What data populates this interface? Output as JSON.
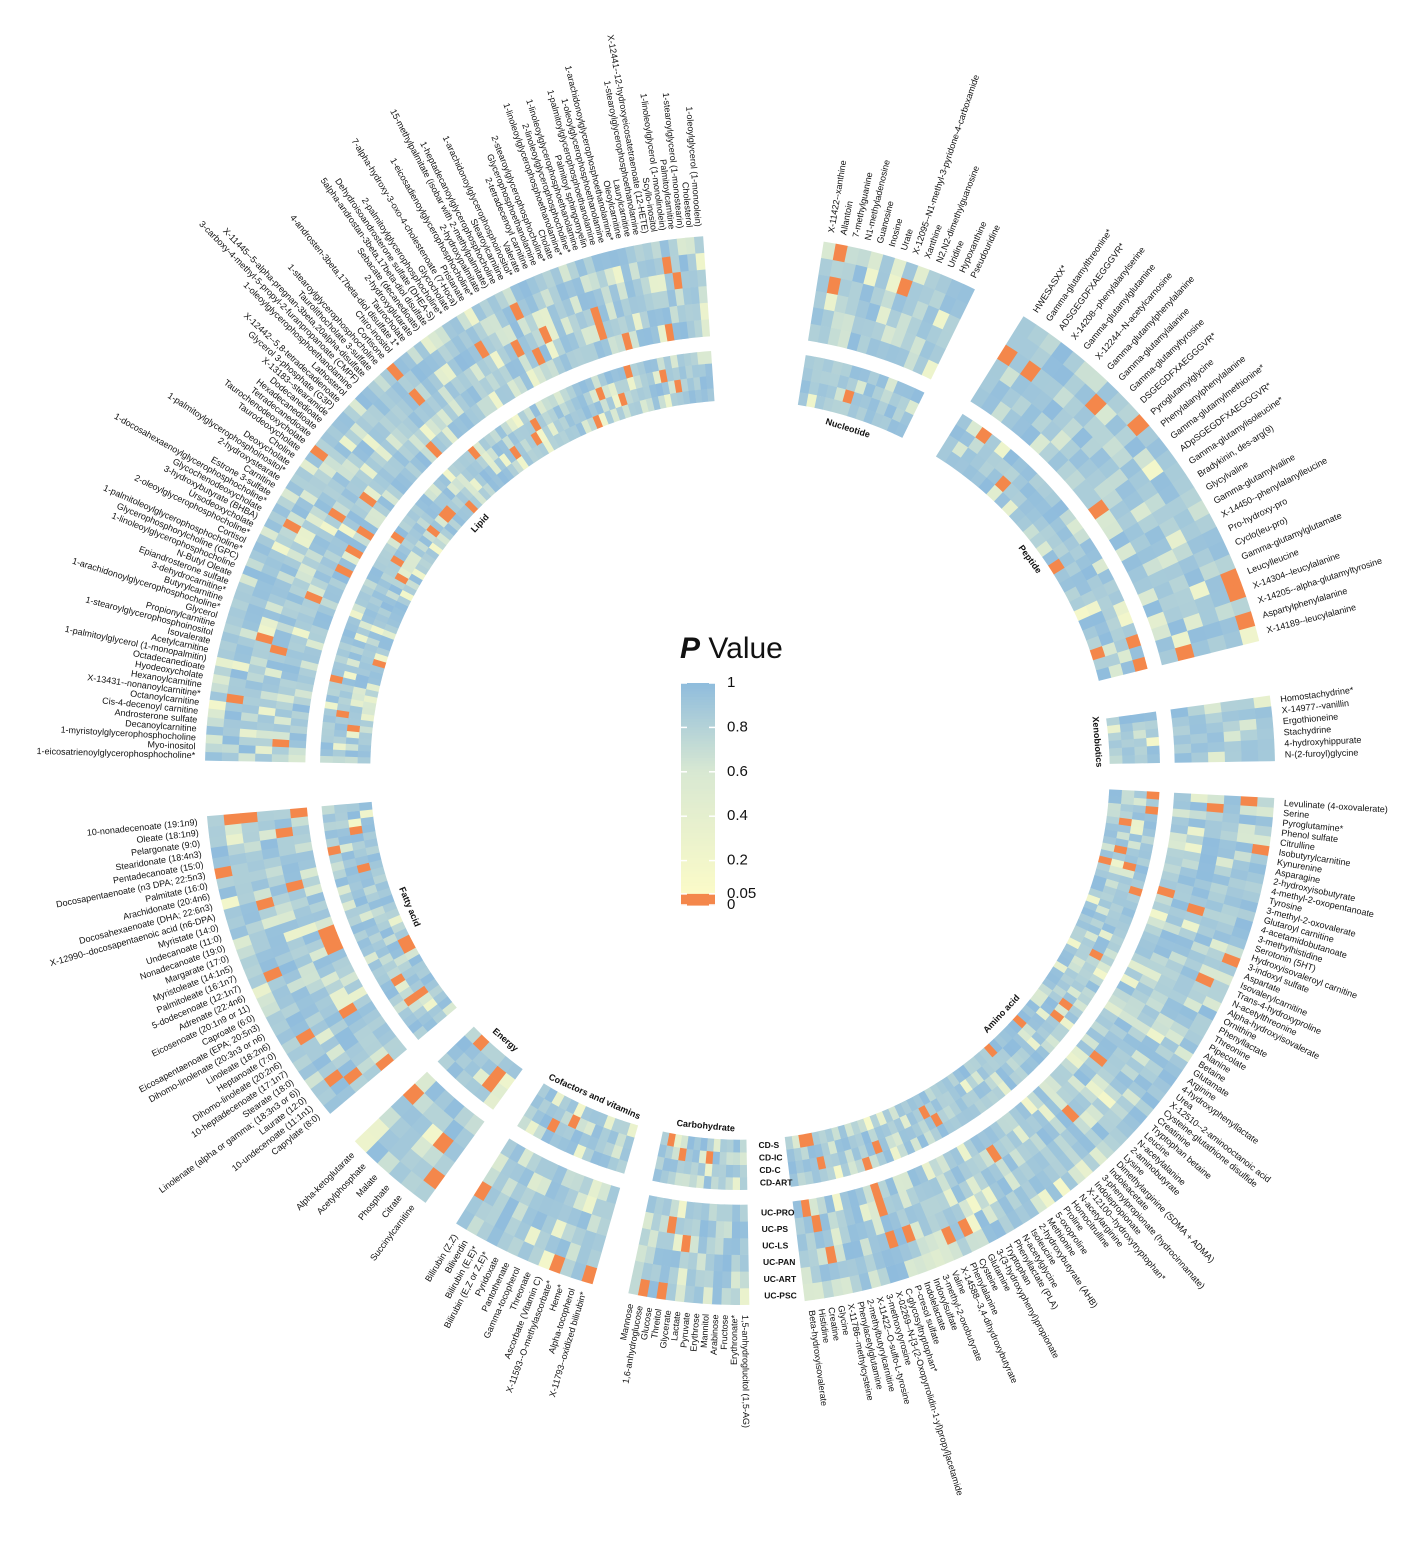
{
  "chart_data": {
    "type": "heatmap",
    "layout": "circular",
    "title": "",
    "legend": {
      "title_p": "P",
      "title_rest": " Value",
      "ticks": [
        "1",
        "0.8",
        "0.6",
        "0.4",
        "0.2",
        "0.05",
        "0"
      ],
      "tick_values": [
        1,
        0.8,
        0.6,
        0.4,
        0.2,
        0.05,
        0
      ],
      "colors": {
        "high": "#8fbcdd",
        "mid": "#d8e8d2",
        "low": "#fbfbc8",
        "sig": "#f4874b"
      },
      "threshold": 0.05
    },
    "rows_inner": [
      "CD-ART",
      "CD-C",
      "CD-IC",
      "CD-S"
    ],
    "rows_outer": [
      "UC-PSC",
      "UC-ART",
      "UC-PAN",
      "UC-LS",
      "UC-PS",
      "UC-PRO"
    ],
    "classes": [
      {
        "name": "Amino acid",
        "start_deg": 93,
        "end_deg": 173,
        "metabolites": [
          "Levulinate (4-oxovalerate)",
          "Serine",
          "Pyroglutamine*",
          "Phenol sulfate",
          "Citrulline",
          "Isobutyrylcarnitine",
          "Kynurenine",
          "Asparagine",
          "2-hydroxyisobutyrate",
          "4-methyl-2-oxopentanoate",
          "Tyrosine",
          "3-methyl-2-oxovalerate",
          "Glutaroyl carnitine",
          "4-acetamidobutanoate",
          "3-methylhistidine",
          "Serotonin (5HT)",
          "Hydroxyisovaleroyl carnitine",
          "3-indoxyl sulfate",
          "Aspartate",
          "Isovalerylcarnitine",
          "Trans-4-hydroxyproline",
          "N-acetylthreonine",
          "Alpha-hydroxyisovalerate",
          "Ornithine",
          "Phenyllactate",
          "Threonine",
          "Pipecolate",
          "Alanine",
          "Betaine",
          "Glutamate",
          "Arginine",
          "4-hydroxyphenyllactate",
          "Urea",
          "X-12510--2-aminooctanoic acid",
          "Cysteine-glutathione disulfide",
          "Creatinine",
          "Tryptophan betaine",
          "Leucine",
          "N-acetylalanine",
          "2-aminobutyrate",
          "Lysine",
          "Dimethylarginine (SDMA + ADMA)",
          "Indoleacetate",
          "3-phenylpropionate (hydrocinnamate)",
          "Indolepropionate",
          "X-12100--hydroxytryptophan*",
          "N-acetylarginine",
          "Homocitrulline",
          "Proline",
          "5-oxoproline",
          "Methionine",
          "2-hydroxybutyrate (AHB)",
          "Isoleucine",
          "N-acetylglycine",
          "Phenyllactate (PLA)",
          "Tryptophan",
          "3-(3-hydroxyphenyl)propionate",
          "Glutamine",
          "Cysteine",
          "Phenylalanine",
          "X-14588--3,4-dihydroxybutyrate",
          "Valine",
          "3-methyl-2-oxobutyrate",
          "Indoxylsulfate",
          "Indolelactate",
          "P-cresol sulfate",
          "C-glycosyltryptophan*",
          "X-02269--N-[3-(2-Oxopyrrolidin-1-yl)propyl]acetamide",
          "3-methoxytyrosine",
          "X-11422--O-sulfo-L-tyrosine",
          "2-methylbutyrylcarnitine",
          "Phenylacetylglutamine",
          "X-11786--methylcysteine",
          "Glycine",
          "Creatine",
          "Histidine",
          "Beta-hydroxyisovalerate"
        ]
      },
      {
        "name": "Carbohydrate",
        "start_deg": 179,
        "end_deg": 192,
        "metabolites": [
          "1,5-anhydroglucitol (1,5-AG)",
          "Erythronate*",
          "Fructose",
          "Arabinose",
          "Mannitol",
          "Erythrose",
          "Pyruvate",
          "Lactate",
          "Glycerate",
          "Threitol",
          "Glucose",
          "1,6-anhydroglucose",
          "Mannose"
        ]
      },
      {
        "name": "Cofactors and vitamins",
        "start_deg": 196,
        "end_deg": 212,
        "metabolites": [
          "X-11793--oxidized bilirubin*",
          "Alpha-tocopherol",
          "Heme*",
          "X-11593--O-methylascorbate*",
          "Ascorbate (Vitamin C)",
          "Threonate",
          "Gamma-tocopherol",
          "Pantothenate",
          "Pyridoxate",
          "Bilirubin (E,Z or Z,E)*",
          "Bilirubin (E,E)*",
          "Biliverdin",
          "Bilirubin (Z,Z)"
        ]
      },
      {
        "name": "Energy",
        "start_deg": 216,
        "end_deg": 226,
        "metabolites": [
          "Succinylcarnitine",
          "Citrate",
          "Phosphate",
          "Malate",
          "Acetylphosphate",
          "Alpha-ketoglutarate"
        ]
      },
      {
        "name": "Fatty acid",
        "start_deg": 230,
        "end_deg": 265,
        "metabolites": [
          "Caprylate (8:0)",
          "10-undecenoate (11:1n1)",
          "Laurate (12:0)",
          "Linolenate (alpha or gamma; (18:3n3 or 6))",
          "Stearate (18:0)",
          "10-heptadecenoate (17:1n7)",
          "Dihomo-linoleate (20:2n6)",
          "Heptanoate (7:0)",
          "Linoleate (18:2n6)",
          "Dihomo-linolenate (20:3n3 or n6)",
          "Eicosapentaenoate (EPA; 20:5n3)",
          "Caproate (6:0)",
          "Eicosenoate (20:1n9 or 11)",
          "Adrenate (22:4n6)",
          "5-dodecenoate (12:1n7)",
          "Palmitoleate (16:1n7)",
          "Myristoleate (14:1n5)",
          "Margarate (17:0)",
          "Nonadecanoate (19:0)",
          "Undecanoate (11:0)",
          "Myristate (14:0)",
          "X-12990--docosapentaenoic acid (n6-DPA)",
          "Docosahexaenoate (DHA; 22:6n3)",
          "Arachidonate (20:4n6)",
          "Palmitate (16:0)",
          "Docosapentaenoate (n3 DPA; 22:5n3)",
          "Pentadecanoate (15:0)",
          "Stearidonate (18:4n3)",
          "Pelargonate (9:0)",
          "Oleate (18:1n9)",
          "10-nonadecenoate (19:1n9)"
        ]
      },
      {
        "name": "Lipid",
        "start_deg": 271,
        "end_deg": 356,
        "metabolites": [
          "1-eicosatrienoylglycerophosphocholine*",
          "Myo-inositol",
          "1-myristoylglycerophosphocholine",
          "Decanoylcarnitine",
          "Androsterone sulfate",
          "Cis-4-decenoyl carnitine",
          "Octanoylcarnitine",
          "X-13431--nonanoylcarnitine*",
          "Hexanoylcarnitine",
          "Hyodeoxycholate",
          "Octadecanedioate",
          "1-palmitoylglycerol (1-monopalmitin)",
          "Acetylcarnitine",
          "Isovalerate",
          "1-stearoylglycerophosphoinositol",
          "Propionylcarnitine",
          "Glycerol",
          "1-arachidonoylglycerophosphocholine*",
          "Butyrylcarnitine",
          "3-dehydrocarnitine*",
          "Epiandrosterone sulfate",
          "N-Butyl Oleate",
          "1-linoleoylglycerophosphocholine",
          "Glycerophosphorylcholine (GPC)",
          "1-palmitoleoylglycerophosphocholine*",
          "Cortisol",
          "2-oleoylglycerophosphocholine*",
          "Ursodeoxycholate",
          "3-hydroxybutyrate (BHBA)",
          "Glycochenodeoxycholate",
          "1-docosahexaenoylglycerophosphocholine*",
          "Estrone 3-sulfate",
          "Carnitine",
          "2-hydroxystearate",
          "1-palmitoylglycerophosphoinositol*",
          "Deoxycholate",
          "Choline",
          "Taurodeoxycholate",
          "Taurochenodeoxycholate",
          "Tetradecanedioate",
          "Hexadecanedioate",
          "Dodecanedioate",
          "X-13183--stearamide",
          "Glycerol 3-phosphate (G3P)",
          "X-12442--5,8-tetradecadienoate",
          "Lathosterol",
          "1-oleoylglycerophosphoethanolamine",
          "3-carboxy-4-methyl-5-propyl-2-furanpropanoate (CMPF)",
          "X-11445--5-alpha-pregnan-3beta,20alpha-disulfate",
          "Taurolithocholate 3-sulfate",
          "1-stearoylglycerophosphocholine",
          "Cortisone",
          "Chiro-inositol",
          "4-androsten-3beta,17beta-diol disulfate 1*",
          "Taurocholate",
          "2-hydroxyglutarate",
          "Sebacate (decanedioate)",
          "5alpha-androstan-3beta,17beta-diol disulfate",
          "Dehydroisoandrosterone sulfate (DHEA-S)",
          "2-palmitoylglycerophosphocholine*",
          "Glycocholate",
          "7-alpha-hydroxy-3-oxo-4-cholestenoate (7-Hoca)",
          "Pristanate",
          "1-eicosadienoylglycerophosphocholine*",
          "2-hydroxypalmitate",
          "15-methylpalmitate (isobar with 2-methylpalmitate)",
          "1-heptadecanoylglycerophosphocholine",
          "Stearoylcarnitine",
          "1-arachidonoylglycerophosphoinositol*",
          "Valerate",
          "2-tetradecenoyl carnitine",
          "Glycerophosphoethanolamine",
          "2-stearoylglycerophosphocholine*",
          "Cholate",
          "1-linoleoylglycerophosphoethanolamine*",
          "2-linoleoylglycerophosphocholine*",
          "1-linoleoylglycerophosphoethanolamine",
          "Palmitoyl sphingomyelin",
          "1-palmitoylglycerophosphoethanolamine",
          "1-oleoylglycerophosphoethanolamine",
          "1-arachidonoylglycerophosphoethanolamine*",
          "Oleoylcarnitine",
          "Laurylcarnitine",
          "1-stearoylglycerophosphoethanolamine",
          "X-12441--12-hydroxyeicosatetraenoate (12-HETE)",
          "Scyllo-inositol",
          "1-linoleoylglycerol (1-monolinolein)",
          "Palmitoylcarnitine",
          "1-stearoylglycerol (1-monostearin)",
          "Cholesterol",
          "1-oleoylglycerol (1-monoolein)"
        ]
      },
      {
        "name": "Nucleotide",
        "start_deg": 9,
        "end_deg": 26,
        "metabolites": [
          "X-11422--xanthine",
          "Allantoin",
          "7-methylguanine",
          "N1-methyladenosine",
          "Guanosine",
          "Inosine",
          "Urate",
          "X-12095--N1-methyl-3-pyridone-4-carboxamide",
          "Xanthine",
          "N2,N2-dimethylguanosine",
          "Uridine",
          "Hypoxanthine",
          "Pseudouridine"
        ]
      },
      {
        "name": "Peptide",
        "start_deg": 32,
        "end_deg": 76,
        "metabolites": [
          "HWESASXX*",
          "Gamma-glutamylthreonine*",
          "ADSGEGDFXAEGGGVR*",
          "X-14208--phenylalanylserine",
          "Gamma-glutamylglutamine",
          "X-12244--N-acetylcarnosine",
          "Gamma-glutamylphenylalanine",
          "Gamma-glutamylalanine",
          "Gamma-glutamyltyrosine",
          "DSGEGDFXAEGGGVR*",
          "Pyroglutamylglycine",
          "Phenylalanylphenylalanine",
          "Gamma-glutamylmethionine*",
          "ADpSGEGDFXAEGGGVR*",
          "Gamma-glutamylisoleucine*",
          "Bradykinin, des-arg(9)",
          "Glycylvaline",
          "Gamma-glutamylvaline",
          "X-14450--phenylalanylleucine",
          "Pro-hydroxy-pro",
          "Cyclo(leu-pro)",
          "Gamma-glutamylglutamate",
          "Leucylleucine",
          "X-14304--leucylalanine",
          "X-14205--alpha-glutamyltyrosine",
          "Aspartylphenylalanine",
          "X-14189--leucylalanine"
        ]
      },
      {
        "name": "Xenobiotics",
        "start_deg": 82,
        "end_deg": 89,
        "metabolites": [
          "Homostachydrine*",
          "X-14977--vanillin",
          "Ergothioneine",
          "Stachydrine",
          "4-hydroxyhippurate",
          "N-(2-furoyl)glycine"
        ]
      }
    ]
  }
}
